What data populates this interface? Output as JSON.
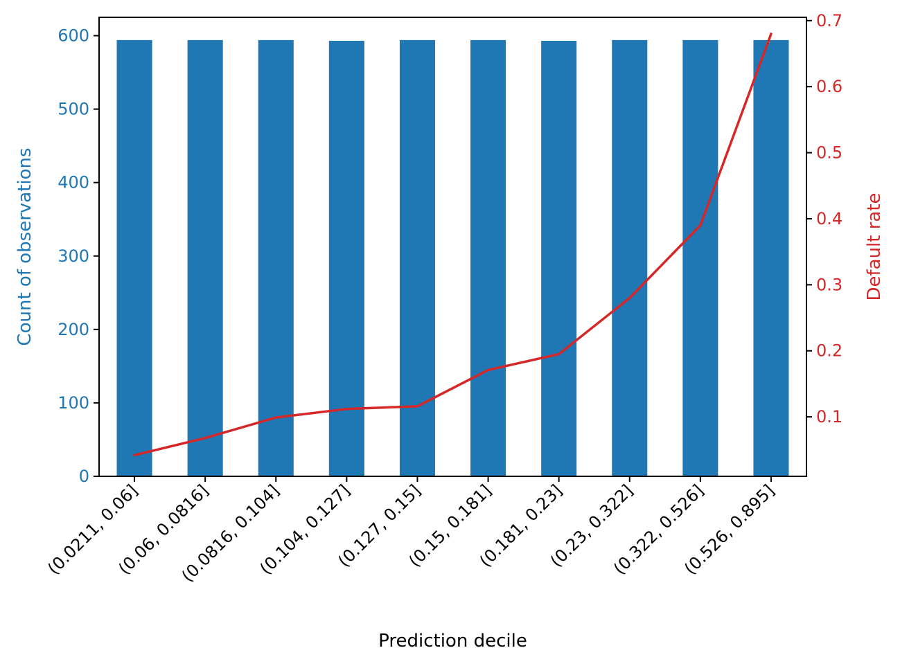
{
  "chart_data": {
    "type": "bar+line",
    "title": "",
    "xlabel": "Prediction decile",
    "categories": [
      "(0.0211, 0.06]",
      "(0.06, 0.0816]",
      "(0.0816, 0.104]",
      "(0.104, 0.127]",
      "(0.127, 0.15]",
      "(0.15, 0.181]",
      "(0.181, 0.23]",
      "(0.23, 0.322]",
      "(0.322, 0.526]",
      "(0.526, 0.895]"
    ],
    "left_axis": {
      "label": "Count of observations",
      "ylim": [
        0,
        625
      ],
      "ticks": [
        0,
        100,
        200,
        300,
        400,
        500,
        600
      ],
      "color": "#1f77b4"
    },
    "right_axis": {
      "label": "Default rate",
      "ylim": [
        0.01,
        0.705
      ],
      "ticks": [
        0.1,
        0.2,
        0.3,
        0.4,
        0.5,
        0.6,
        0.7
      ],
      "color": "#d62728"
    },
    "series": [
      {
        "type": "bar",
        "axis": "left",
        "color": "#1f77b4",
        "values": [
          594,
          594,
          594,
          593,
          594,
          594,
          593,
          594,
          594,
          594
        ]
      },
      {
        "type": "line",
        "axis": "right",
        "color": "#d62728",
        "values": [
          0.042,
          0.068,
          0.099,
          0.112,
          0.116,
          0.171,
          0.195,
          0.28,
          0.39,
          0.68
        ]
      }
    ]
  }
}
